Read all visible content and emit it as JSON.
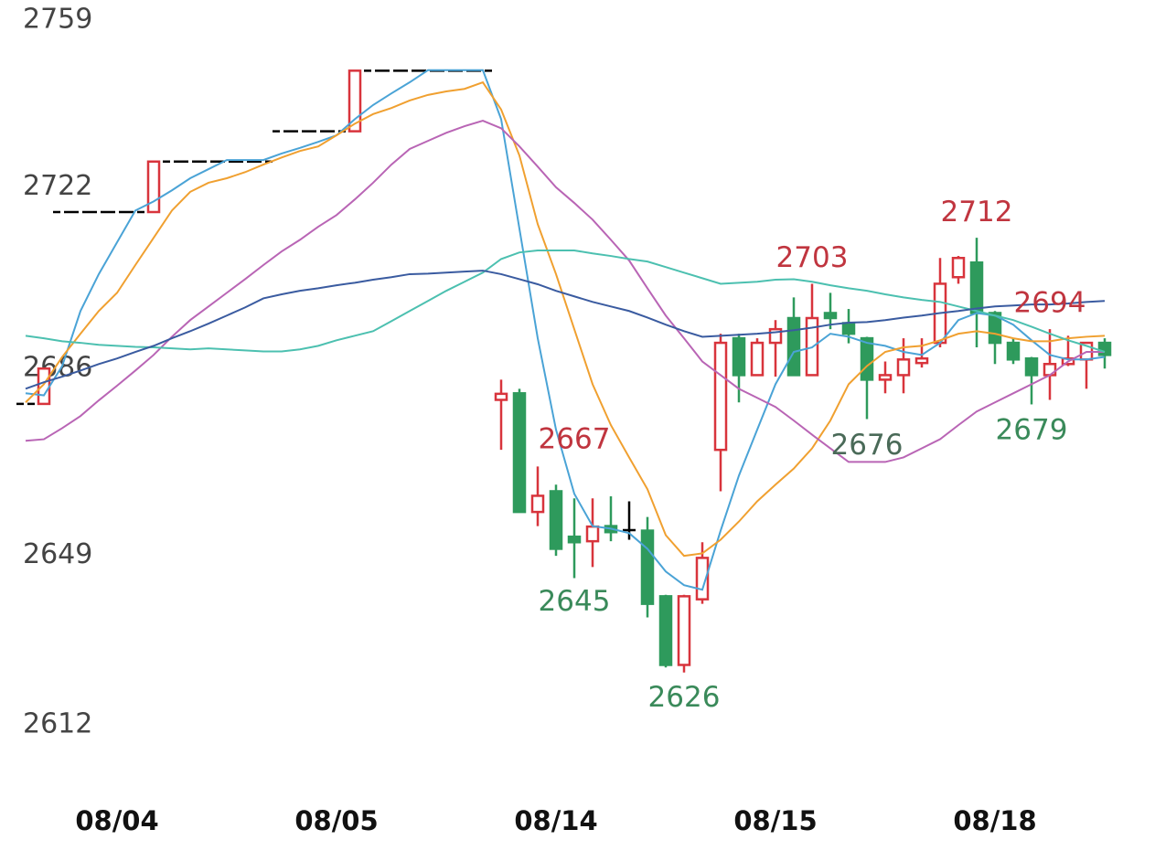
{
  "chart_data": {
    "type": "candlestick",
    "categories": [
      null,
      null,
      null,
      null,
      null,
      "08/04",
      null,
      null,
      null,
      null,
      null,
      null,
      null,
      null,
      null,
      null,
      null,
      "08/05",
      null,
      null,
      null,
      null,
      null,
      null,
      null,
      null,
      null,
      null,
      null,
      "08/14",
      null,
      null,
      null,
      null,
      null,
      null,
      null,
      null,
      null,
      null,
      null,
      "08/15",
      null,
      null,
      null,
      null,
      null,
      null,
      null,
      null,
      null,
      null,
      null,
      "08/18",
      null,
      null,
      null,
      null,
      null,
      null
    ],
    "open": [
      2679,
      2679,
      2717,
      2717,
      2717,
      2717,
      2717,
      2717,
      2727,
      2727,
      2727,
      2727,
      2727,
      2727,
      2733,
      2733,
      2733,
      2733,
      2733,
      2745,
      2745,
      2745,
      2745,
      2745,
      2745,
      2745,
      2679.8,
      2681.1,
      2657.6,
      2661.7,
      2652.7,
      2651.8,
      2654.8,
      2654,
      2653.9,
      2640.9,
      2627.3,
      2640.3,
      2669.9,
      2692,
      2684.7,
      2691.1,
      2696,
      2684.7,
      2697,
      2695,
      2692,
      2683.8,
      2684.7,
      2687.1,
      2691.1,
      2704.1,
      2707,
      2697,
      2691.1,
      2688,
      2684.7,
      2686.9,
      2687.8,
      2691.1
    ],
    "high": [
      2679,
      2686,
      2717,
      2717,
      2717,
      2717,
      2717,
      2727,
      2727,
      2727,
      2727,
      2727,
      2727,
      2727,
      2733,
      2733,
      2733,
      2733,
      2745,
      2745,
      2745,
      2745,
      2745,
      2745,
      2745,
      2745,
      2683.8,
      2682,
      2666.6,
      2663,
      2660.3,
      2660.3,
      2660.7,
      2659.7,
      2656.6,
      2641.2,
      2641.2,
      2651.6,
      2692.9,
      2692.9,
      2692,
      2695.6,
      2700.1,
      2702.8,
      2701,
      2697.8,
      2692.3,
      2687.4,
      2692,
      2692,
      2707.9,
      2708.3,
      2711.9,
      2697.4,
      2692,
      2688.3,
      2693.8,
      2692.5,
      2691.1,
      2692
    ],
    "low": [
      2679,
      2679,
      2717,
      2717,
      2717,
      2717,
      2717,
      2717,
      2727,
      2727,
      2727,
      2727,
      2727,
      2727,
      2733,
      2733,
      2733,
      2733,
      2733,
      2745,
      2745,
      2745,
      2745,
      2745,
      2745,
      2745,
      2669.9,
      2657.6,
      2654.8,
      2648.9,
      2644.5,
      2646.7,
      2651.8,
      2652.1,
      2636.7,
      2626.8,
      2625.8,
      2639.4,
      2661.7,
      2679.3,
      2684.7,
      2684.4,
      2684.7,
      2684.7,
      2693.8,
      2691,
      2676,
      2681.1,
      2681.1,
      2686.2,
      2690.2,
      2702.8,
      2690.2,
      2686.9,
      2686.9,
      2678.9,
      2679.8,
      2686.5,
      2682,
      2686
    ],
    "close": [
      2679,
      2686,
      2717,
      2717,
      2717,
      2717,
      2717,
      2727,
      2727,
      2727,
      2727,
      2727,
      2727,
      2727,
      2733,
      2733,
      2733,
      2733,
      2745,
      2745,
      2745,
      2745,
      2745,
      2745,
      2745,
      2745,
      2681,
      2657.6,
      2660.8,
      2650.3,
      2651.6,
      2654.7,
      2653.6,
      2654,
      2639.4,
      2627.3,
      2640.9,
      2648.5,
      2691.1,
      2684.7,
      2691.1,
      2693.8,
      2684.7,
      2696,
      2696,
      2692.9,
      2683.8,
      2684.7,
      2687.8,
      2688,
      2702.8,
      2707.9,
      2697,
      2691.1,
      2687.8,
      2684.7,
      2686.9,
      2688,
      2691.1,
      2688.7
    ],
    "up_color": "#d8343c",
    "down_color": "#2e9a5c",
    "flat_color": "#000000",
    "overlays": [
      {
        "color": "#4aa3d6",
        "values": [
          2681.1,
          2680.7,
          2686.5,
          2697.4,
          2704.7,
          2711,
          2717.3,
          2719.1,
          2721.3,
          2723.7,
          2725.5,
          2727.3,
          2727.3,
          2727.3,
          2728.6,
          2729.7,
          2730.9,
          2732.2,
          2735.4,
          2738.2,
          2740.5,
          2742.7,
          2745.1,
          2745.1,
          2745.1,
          2745.1,
          2735.4,
          2713.7,
          2692,
          2673.9,
          2661.2,
          2654.8,
          2654.3,
          2653.4,
          2650.3,
          2645.8,
          2643.1,
          2642.2,
          2653.9,
          2664.8,
          2673.9,
          2682.9,
          2689.3,
          2690.2,
          2692.9,
          2692.3,
          2691.1,
          2690.5,
          2689.3,
          2688.7,
          2691.1,
          2695.6,
          2697,
          2696.5,
          2694.7,
          2691.6,
          2688.7,
          2687.8,
          2687.8,
          2688.3
        ]
      },
      {
        "color": "#f0a030",
        "values": [
          2679.3,
          2682.9,
          2688.3,
          2692.9,
          2697.4,
          2701,
          2706.5,
          2711.9,
          2717.3,
          2721,
          2722.8,
          2723.7,
          2724.9,
          2726.4,
          2727.8,
          2729.1,
          2730,
          2732.2,
          2734.5,
          2736.4,
          2737.6,
          2739.1,
          2740.2,
          2740.9,
          2741.4,
          2742.7,
          2737.3,
          2728.2,
          2714.6,
          2704.7,
          2693.8,
          2682.9,
          2674.8,
          2668.4,
          2662.1,
          2653,
          2648.9,
          2649.4,
          2652.1,
          2655.7,
          2659.7,
          2663,
          2666.2,
          2670.2,
          2675.7,
          2682.9,
          2686.5,
          2689.3,
          2690.2,
          2690.5,
          2691.6,
          2692.9,
          2693.4,
          2692.9,
          2692,
          2691.4,
          2691.4,
          2692,
          2692.3,
          2692.5
        ]
      },
      {
        "color": "#b965b5",
        "values": [
          2671.7,
          2672,
          2674.2,
          2676.6,
          2679.7,
          2682.6,
          2685.6,
          2688.7,
          2692.3,
          2695.6,
          2698.3,
          2701,
          2703.7,
          2706.5,
          2709.2,
          2711.5,
          2714.1,
          2716.4,
          2719.5,
          2722.8,
          2726.4,
          2729.5,
          2731.1,
          2732.7,
          2734,
          2735.1,
          2733.6,
          2730,
          2726,
          2721.9,
          2718.8,
          2715.5,
          2711.5,
          2707.4,
          2701.9,
          2696.5,
          2692,
          2687.4,
          2684.7,
          2682,
          2680.2,
          2678.4,
          2675.7,
          2672.9,
          2670.2,
          2667.5,
          2667.5,
          2667.5,
          2668.4,
          2670.2,
          2672,
          2674.8,
          2677.5,
          2679.3,
          2681.1,
          2682.9,
          2684.7,
          2687.4,
          2689.3,
          2689.3
        ]
      },
      {
        "color": "#4cc0b0",
        "values": [
          2692.5,
          2692,
          2691.4,
          2691.1,
          2690.7,
          2690.5,
          2690.3,
          2690.2,
          2690,
          2689.8,
          2690,
          2689.8,
          2689.6,
          2689.4,
          2689.4,
          2689.8,
          2690.5,
          2691.6,
          2692.5,
          2693.4,
          2695.4,
          2697.4,
          2699.4,
          2701.4,
          2703.2,
          2705,
          2707.7,
          2709,
          2709.4,
          2709.4,
          2709.4,
          2708.8,
          2708.3,
          2707.7,
          2707.2,
          2706.1,
          2705,
          2703.9,
          2702.8,
          2703,
          2703.2,
          2703.6,
          2703.7,
          2703.2,
          2702.5,
          2701.9,
          2701.4,
          2700.7,
          2700.1,
          2699.6,
          2699.2,
          2698.3,
          2697.4,
          2696.5,
          2695.6,
          2694.3,
          2692.9,
          2691.6,
          2690.5,
          2689.3
        ]
      },
      {
        "color": "#3a5ba0",
        "values": [
          2682,
          2683.3,
          2684.4,
          2685.6,
          2686.9,
          2688,
          2689.3,
          2690.5,
          2692,
          2693.4,
          2694.9,
          2696.5,
          2698.1,
          2699.9,
          2700.7,
          2701.4,
          2701.9,
          2702.5,
          2703,
          2703.6,
          2704.1,
          2704.7,
          2704.8,
          2705,
          2705.2,
          2705.4,
          2704.7,
          2703.7,
          2702.7,
          2701.4,
          2700.3,
          2699.2,
          2698.3,
          2697.4,
          2696.1,
          2694.7,
          2693.4,
          2692.3,
          2692.5,
          2692.7,
          2692.9,
          2693.2,
          2693.6,
          2694.1,
          2694.7,
          2695.1,
          2695.2,
          2695.6,
          2696.1,
          2696.5,
          2697,
          2697.4,
          2697.9,
          2698.3,
          2698.5,
          2698.7,
          2698.7,
          2698.9,
          2699.2,
          2699.4
        ]
      }
    ],
    "annotations": [
      {
        "value": 2667,
        "index": 30,
        "position": "above",
        "color": "#c0353f"
      },
      {
        "value": 2645,
        "index": 30,
        "position": "below",
        "color": "#3a8a5a"
      },
      {
        "value": 2626,
        "index": 36,
        "position": "below",
        "color": "#3a8a5a"
      },
      {
        "value": 2703,
        "index": 43,
        "position": "above",
        "color": "#c0353f"
      },
      {
        "value": 2676,
        "index": 46,
        "position": "below",
        "color": "#4a6a58"
      },
      {
        "value": 2712,
        "index": 52,
        "position": "above",
        "color": "#c0353f"
      },
      {
        "value": 2694,
        "index": 56,
        "position": "above",
        "color": "#c0353f"
      },
      {
        "value": 2679,
        "index": 55,
        "position": "below",
        "color": "#3a8a5a"
      }
    ],
    "ylim": [
      2612,
      2759
    ],
    "yticks": [
      2759,
      2722,
      2686,
      2649,
      2612
    ]
  }
}
